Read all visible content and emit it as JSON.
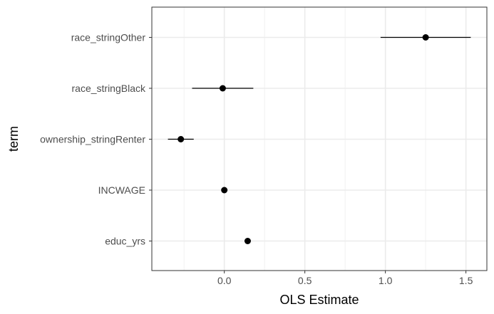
{
  "chart_data": {
    "type": "scatter",
    "title": "",
    "xlabel": "OLS Estimate",
    "ylabel": "term",
    "xlim": [
      -0.45,
      1.63
    ],
    "x_ticks": [
      0.0,
      0.5,
      1.0,
      1.5
    ],
    "x_tick_labels": [
      "0.0",
      "0.5",
      "1.0",
      "1.5"
    ],
    "grid": true,
    "terms": [
      {
        "term": "race_stringOther",
        "estimate": 1.25,
        "conf_low": 0.97,
        "conf_high": 1.53
      },
      {
        "term": "race_stringBlack",
        "estimate": -0.01,
        "conf_low": -0.2,
        "conf_high": 0.18
      },
      {
        "term": "ownership_stringRenter",
        "estimate": -0.27,
        "conf_low": -0.35,
        "conf_high": -0.19
      },
      {
        "term": "INCWAGE",
        "estimate": 0.0,
        "conf_low": 0.0,
        "conf_high": 0.0
      },
      {
        "term": "educ_yrs",
        "estimate": 0.145,
        "conf_low": 0.145,
        "conf_high": 0.145
      }
    ]
  }
}
